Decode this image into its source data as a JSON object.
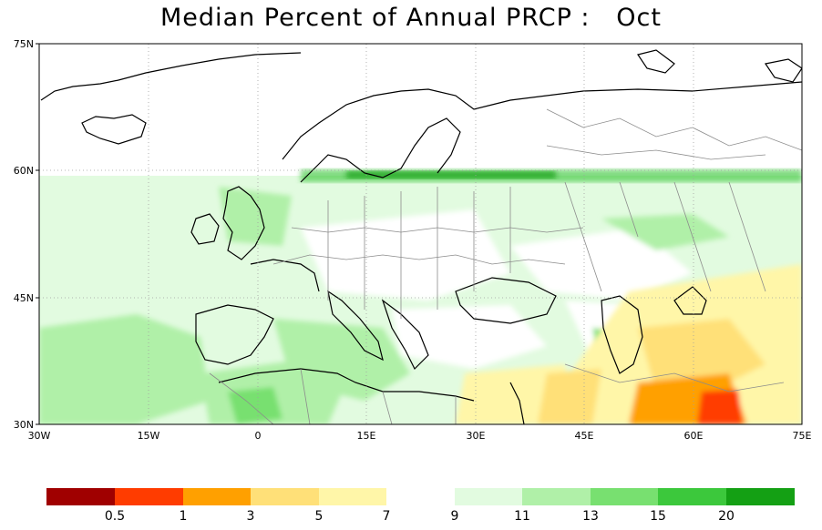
{
  "title": "Median Percent of Annual PRCP :   Oct",
  "map": {
    "lon_range": [
      -30,
      75
    ],
    "lat_range": [
      30,
      75
    ],
    "lon_ticks": [
      "30W",
      "15W",
      "0",
      "15E",
      "30E",
      "45E",
      "60E",
      "75E"
    ],
    "lat_ticks": [
      "75N",
      "60N",
      "45N",
      "30N"
    ],
    "grid": true,
    "missing_data_north_of": "60N"
  },
  "colorbar": {
    "colors": [
      "#a00000",
      "#ff3c00",
      "#ffa000",
      "#ffe078",
      "#fff6a8",
      "#ffffff",
      "#e2fbe0",
      "#b0f0a8",
      "#78e070",
      "#3cc83c",
      "#14a014"
    ],
    "labels": [
      "0.5",
      "1",
      "3",
      "5",
      "7",
      "9",
      "11",
      "13",
      "15",
      "20"
    ]
  },
  "colors": {
    "land_white": "#ffffff",
    "pale_green": "#e2fbe0",
    "light_green": "#b0f0a8",
    "mid_green": "#78e070",
    "green": "#3cc83c",
    "pale_yellow": "#fff6a8",
    "yellow": "#ffe078",
    "orange": "#ffa000",
    "red_orange": "#ff3c00",
    "coast": "#000000",
    "borders": "#8c8c8c",
    "grid": "#a0a0a0"
  }
}
